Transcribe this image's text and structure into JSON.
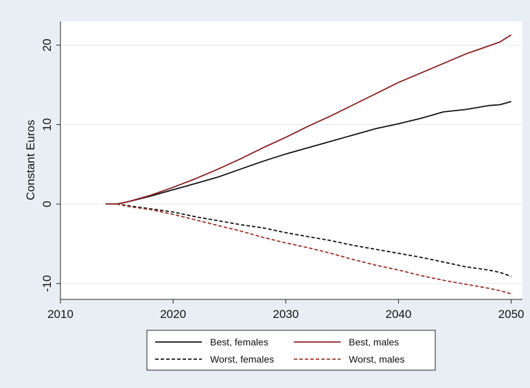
{
  "chart_data": {
    "type": "line",
    "title": "",
    "xlabel": "",
    "ylabel": "Constant Euros",
    "xlim": [
      2010,
      2051
    ],
    "ylim": [
      -12,
      23
    ],
    "xticks": [
      2010,
      2020,
      2030,
      2040,
      2050
    ],
    "yticks": [
      -10,
      0,
      10,
      20
    ],
    "grid": true,
    "legend_position": "bottom",
    "series": [
      {
        "name": "Best, females",
        "color": "#111111",
        "dash": "solid",
        "x": [
          2014,
          2015,
          2016,
          2018,
          2020,
          2022,
          2024,
          2026,
          2028,
          2030,
          2032,
          2034,
          2036,
          2038,
          2040,
          2042,
          2044,
          2046,
          2048,
          2049,
          2050
        ],
        "y": [
          0,
          0,
          0.3,
          1.0,
          1.8,
          2.6,
          3.4,
          4.4,
          5.4,
          6.3,
          7.1,
          7.9,
          8.7,
          9.5,
          10.1,
          10.8,
          11.6,
          11.9,
          12.4,
          12.5,
          12.9
        ]
      },
      {
        "name": "Best, males",
        "color": "#8b1c1c",
        "dash": "solid",
        "x": [
          2014,
          2015,
          2016,
          2018,
          2020,
          2022,
          2024,
          2026,
          2028,
          2030,
          2032,
          2034,
          2036,
          2038,
          2040,
          2042,
          2044,
          2046,
          2048,
          2049,
          2050
        ],
        "y": [
          0,
          0,
          0.3,
          1.1,
          2.1,
          3.2,
          4.4,
          5.7,
          7.1,
          8.4,
          9.8,
          11.1,
          12.5,
          13.9,
          15.3,
          16.5,
          17.7,
          18.9,
          19.9,
          20.4,
          21.3
        ]
      },
      {
        "name": "Worst, females",
        "color": "#111111",
        "dash": "dashed",
        "x": [
          2014,
          2015,
          2016,
          2018,
          2020,
          2022,
          2024,
          2026,
          2028,
          2030,
          2032,
          2034,
          2036,
          2038,
          2040,
          2042,
          2044,
          2046,
          2048,
          2049,
          2050
        ],
        "y": [
          0,
          0,
          -0.2,
          -0.6,
          -1.0,
          -1.6,
          -2.1,
          -2.6,
          -3.0,
          -3.6,
          -4.1,
          -4.6,
          -5.2,
          -5.7,
          -6.2,
          -6.7,
          -7.3,
          -7.9,
          -8.3,
          -8.6,
          -9.1
        ]
      },
      {
        "name": "Worst, males",
        "color": "#a0302a",
        "dash": "dashed",
        "x": [
          2014,
          2015,
          2016,
          2018,
          2020,
          2022,
          2024,
          2026,
          2028,
          2030,
          2032,
          2034,
          2036,
          2038,
          2040,
          2042,
          2044,
          2046,
          2048,
          2049,
          2050
        ],
        "y": [
          0,
          0,
          -0.3,
          -0.7,
          -1.3,
          -2.0,
          -2.7,
          -3.4,
          -4.2,
          -4.9,
          -5.5,
          -6.2,
          -7.0,
          -7.7,
          -8.3,
          -9.0,
          -9.6,
          -10.1,
          -10.6,
          -10.9,
          -11.3
        ]
      }
    ]
  }
}
